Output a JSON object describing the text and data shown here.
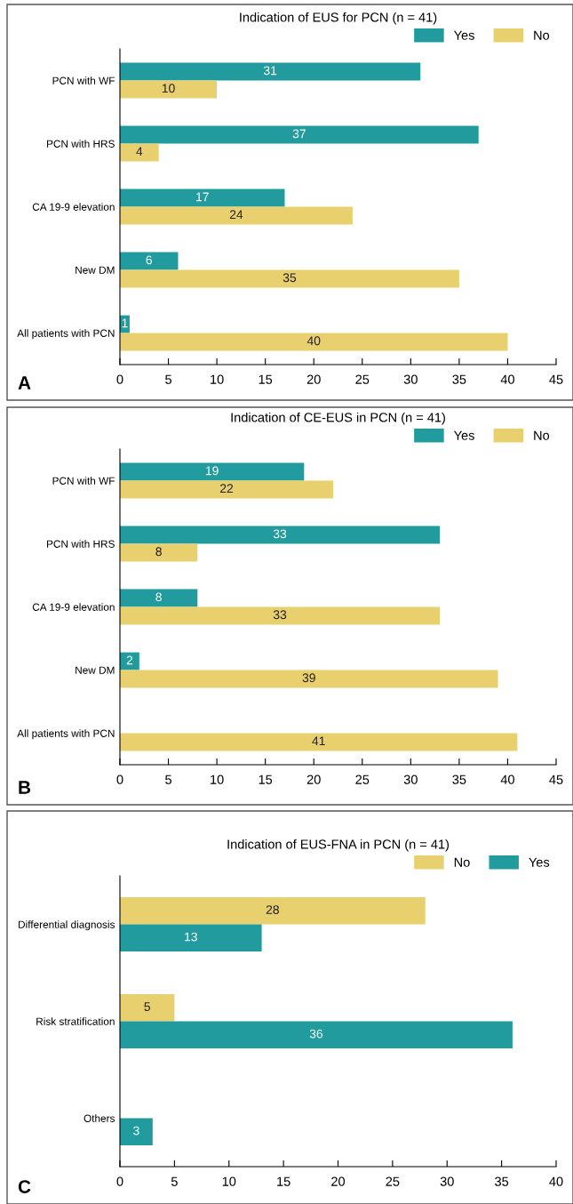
{
  "chart_data": [
    {
      "type": "bar",
      "orientation": "horizontal",
      "title": "Indication of EUS for PCN (n = 41)",
      "categories": [
        "PCN with WF",
        "PCN with HRS",
        "CA 19-9 elevation",
        "New DM",
        "All patients with PCN"
      ],
      "series": [
        {
          "name": "Yes",
          "color": "#219b9d",
          "values": [
            31,
            37,
            17,
            6,
            1
          ],
          "value_labels": [
            "31",
            "37",
            "17",
            "6",
            "1"
          ]
        },
        {
          "name": "No",
          "color": "#e8d06f",
          "values": [
            10,
            4,
            24,
            35,
            40
          ],
          "value_labels": [
            "10",
            "4",
            "24",
            "35",
            "40"
          ]
        }
      ],
      "xlim": [
        0,
        45
      ],
      "xticks": [
        0,
        5,
        10,
        15,
        20,
        25,
        30,
        35,
        40,
        45
      ],
      "legend": "top right",
      "grid": false,
      "annotations": [
        "A"
      ]
    },
    {
      "type": "bar",
      "orientation": "horizontal",
      "title": "Indication of CE-EUS in PCN (n = 41)",
      "categories": [
        "PCN with WF",
        "PCN with HRS",
        "CA 19-9 elevation",
        "New DM",
        "All patients with PCN"
      ],
      "series": [
        {
          "name": "Yes",
          "color": "#219b9d",
          "values": [
            19,
            33,
            8,
            2,
            0
          ],
          "value_labels": [
            "19",
            "33",
            "8",
            "2",
            null
          ]
        },
        {
          "name": "No",
          "color": "#e8d06f",
          "values": [
            22,
            8,
            33,
            39,
            41
          ],
          "value_labels": [
            "22",
            "8",
            "33",
            "39",
            "41"
          ]
        }
      ],
      "xlim": [
        0,
        45
      ],
      "xticks": [
        0,
        5,
        10,
        15,
        20,
        25,
        30,
        35,
        40,
        45
      ],
      "legend": "top right",
      "grid": false,
      "annotations": [
        "B"
      ]
    },
    {
      "type": "bar",
      "orientation": "horizontal",
      "title": "Indication of EUS-FNA in PCN (n = 41)",
      "categories": [
        "Differential diagnosis",
        "Risk stratification",
        "Others"
      ],
      "series": [
        {
          "name": "No",
          "color": "#e8d06f",
          "values": [
            28,
            5,
            0
          ],
          "value_labels": [
            "28",
            "5",
            null
          ]
        },
        {
          "name": "Yes",
          "color": "#219b9d",
          "values": [
            13,
            36,
            3
          ],
          "value_labels": [
            "13",
            "36",
            "3"
          ]
        }
      ],
      "xlim": [
        0,
        40
      ],
      "xticks": [
        0,
        5,
        10,
        15,
        20,
        25,
        30,
        35,
        40
      ],
      "legend": "top right",
      "grid": false,
      "annotations": [
        "C"
      ]
    }
  ]
}
